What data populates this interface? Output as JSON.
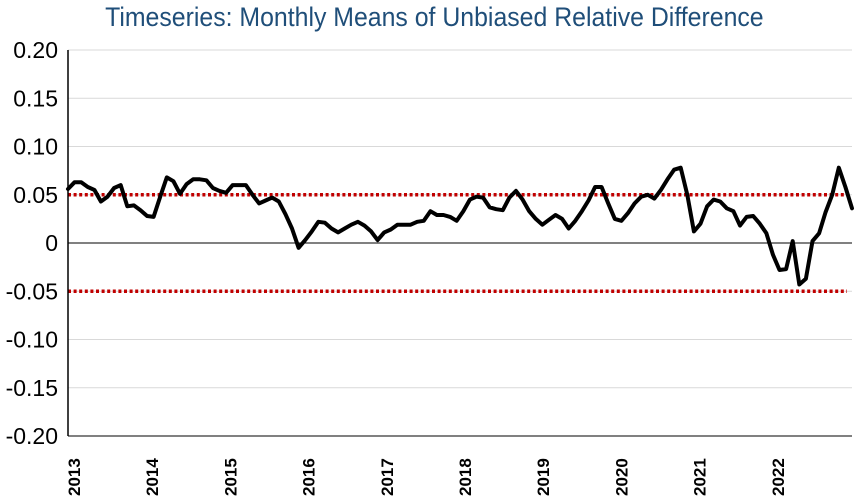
{
  "chart_data": {
    "type": "line",
    "title": "Timeseries: Monthly Means of Unbiased Relative Difference",
    "xlabel": "",
    "ylabel": "",
    "ylim": [
      -0.2,
      0.2
    ],
    "yticks": [
      0.2,
      0.15,
      0.1,
      0.05,
      0,
      -0.05,
      -0.1,
      -0.15,
      -0.2
    ],
    "ytick_labels": [
      "0.20",
      "0.15",
      "0.10",
      "0.05",
      "0",
      "-0.05",
      "-0.10",
      "-0.15",
      "-0.20"
    ],
    "xtick_labels": [
      "2013",
      "2014",
      "2015",
      "2016",
      "2017",
      "2018",
      "2019",
      "2020",
      "2021",
      "2022"
    ],
    "x_start_year": 2013,
    "x_end": 2023,
    "grid": true,
    "reference_lines": [
      0.05,
      -0.05
    ],
    "colors": {
      "line": "#000000",
      "reference": "#c00000",
      "grid": "#d9d9d9",
      "axis": "#000000"
    },
    "series": [
      {
        "name": "Monthly Means of Unbiased Relative Difference",
        "values": [
          0.056,
          0.063,
          0.063,
          0.058,
          0.055,
          0.043,
          0.048,
          0.057,
          0.06,
          0.038,
          0.039,
          0.034,
          0.028,
          0.027,
          0.048,
          0.068,
          0.064,
          0.051,
          0.061,
          0.066,
          0.066,
          0.065,
          0.057,
          0.054,
          0.052,
          0.06,
          0.06,
          0.06,
          0.05,
          0.041,
          0.044,
          0.047,
          0.043,
          0.03,
          0.015,
          -0.005,
          0.003,
          0.012,
          0.022,
          0.021,
          0.015,
          0.011,
          0.015,
          0.019,
          0.022,
          0.018,
          0.012,
          0.003,
          0.011,
          0.014,
          0.019,
          0.019,
          0.019,
          0.022,
          0.023,
          0.033,
          0.029,
          0.029,
          0.027,
          0.023,
          0.033,
          0.045,
          0.048,
          0.047,
          0.037,
          0.035,
          0.034,
          0.047,
          0.054,
          0.045,
          0.033,
          0.025,
          0.019,
          0.024,
          0.029,
          0.025,
          0.015,
          0.023,
          0.033,
          0.044,
          0.058,
          0.058,
          0.041,
          0.025,
          0.023,
          0.031,
          0.041,
          0.048,
          0.05,
          0.046,
          0.055,
          0.066,
          0.076,
          0.078,
          0.05,
          0.012,
          0.02,
          0.038,
          0.045,
          0.043,
          0.036,
          0.033,
          0.018,
          0.027,
          0.028,
          0.02,
          0.01,
          -0.012,
          -0.028,
          -0.027,
          0.002,
          -0.043,
          -0.037,
          0.002,
          0.01,
          0.032,
          0.05,
          0.078,
          0.058,
          0.036
        ]
      }
    ]
  }
}
